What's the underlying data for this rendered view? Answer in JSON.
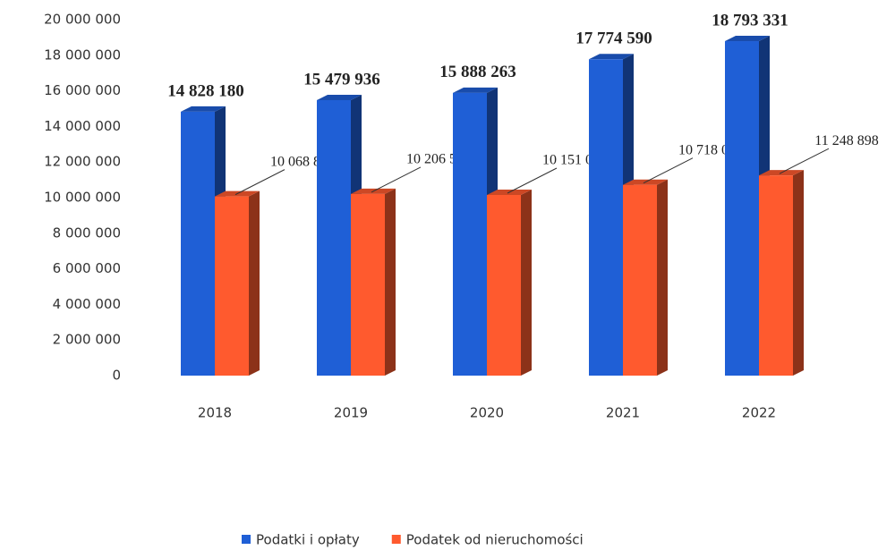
{
  "chart_data": {
    "type": "bar3d",
    "categories": [
      "2018",
      "2019",
      "2020",
      "2021",
      "2022"
    ],
    "series": [
      {
        "name": "Podatki i opłaty",
        "color": "#1f5fd6",
        "values": [
          14828180,
          15479936,
          15888263,
          17774590,
          18793331
        ],
        "value_labels": [
          "14 828 180",
          "15 479 936",
          "15 888 263",
          "17 774 590",
          "18 793 331"
        ]
      },
      {
        "name": "Podatek od nieruchomości",
        "color": "#ff5a2e",
        "values": [
          10068830,
          10206540,
          10151027,
          10718034,
          11248898
        ],
        "value_labels": [
          "10 068 830",
          "10 206 540",
          "10 151 027",
          "10 718 034",
          "11 248 898"
        ]
      }
    ],
    "ylim": [
      0,
      20000000
    ],
    "yticks": [
      0,
      {
        "value": 2000000,
        "label": "2 000 000"
      },
      {
        "value": 4000000,
        "label": "4 000 000"
      },
      {
        "value": 6000000,
        "label": "6 000 000"
      },
      {
        "value": 8000000,
        "label": "8 000 000"
      },
      {
        "value": 10000000,
        "label": "10 000 000"
      },
      {
        "value": 12000000,
        "label": "12 000 000"
      },
      {
        "value": 14000000,
        "label": "14 000 000"
      },
      {
        "value": 16000000,
        "label": "16 000 000"
      },
      {
        "value": 18000000,
        "label": "18 000 000"
      },
      {
        "value": 20000000,
        "label": "20 000 000"
      }
    ],
    "legend": "bottom"
  }
}
